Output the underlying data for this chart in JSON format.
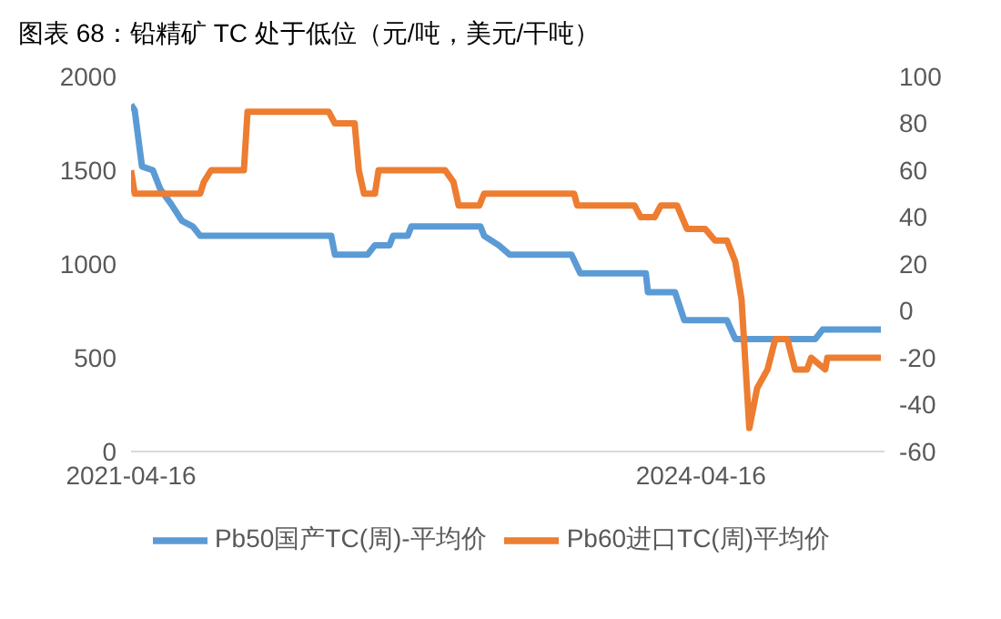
{
  "chart_data": {
    "type": "line",
    "title": "图表 68：铅精矿 TC 处于低位（元/吨，美元/干吨）",
    "xlim": [
      "2021-04-16",
      "2025-04-04"
    ],
    "xticks": [
      "2021-04-16",
      "2024-04-16"
    ],
    "ylim": [
      0,
      2000
    ],
    "yticks": [
      0,
      500,
      1000,
      1500,
      2000
    ],
    "y2lim": [
      -60,
      100
    ],
    "y2ticks": [
      -60,
      -40,
      -20,
      0,
      20,
      40,
      60,
      80,
      100
    ],
    "grid": false,
    "legend": "bottom",
    "marker": "none",
    "line_style": "solid",
    "series": [
      {
        "name": "Pb50国产TC(周)-平均价",
        "color": "#5b9bd5",
        "x": [
          "2021-04-16",
          "2021-04-23",
          "2021-05-07",
          "2021-05-28",
          "2021-06-11",
          "2021-07-02",
          "2021-07-23",
          "2021-08-13",
          "2021-08-27",
          "2022-05-06",
          "2022-05-13",
          "2022-07-15",
          "2022-07-29",
          "2022-08-26",
          "2022-09-02",
          "2022-09-30",
          "2022-10-07",
          "2023-02-17",
          "2023-02-24",
          "2023-03-24",
          "2023-04-14",
          "2023-08-11",
          "2023-08-28",
          "2024-01-01",
          "2024-01-05",
          "2024-02-26",
          "2024-03-15",
          "2024-06-05",
          "2024-06-21",
          "2024-11-22",
          "2024-12-06",
          "2025-03-28"
        ],
        "values": [
          1850,
          1820,
          1520,
          1500,
          1400,
          1320,
          1230,
          1200,
          1150,
          1150,
          1050,
          1050,
          1100,
          1100,
          1150,
          1150,
          1200,
          1200,
          1150,
          1100,
          1050,
          1050,
          950,
          950,
          850,
          850,
          700,
          700,
          600,
          600,
          650,
          650
        ]
      },
      {
        "name": "Pb60进口TC(周)平均价",
        "color": "#ed7d31",
        "axis": "y2",
        "x": [
          "2021-04-16",
          "2021-04-23",
          "2021-08-27",
          "2021-09-03",
          "2021-09-17",
          "2021-11-19",
          "2021-11-26",
          "2022-05-01",
          "2022-05-13",
          "2022-06-20",
          "2022-06-28",
          "2022-07-08",
          "2022-07-29",
          "2022-08-05",
          "2022-12-11",
          "2022-12-27",
          "2023-01-06",
          "2023-02-15",
          "2023-02-24",
          "2023-08-16",
          "2023-08-22",
          "2023-12-10",
          "2023-12-22",
          "2024-01-18",
          "2024-01-30",
          "2024-03-01",
          "2024-03-20",
          "2024-04-24",
          "2024-05-13",
          "2024-06-05",
          "2024-06-21",
          "2024-07-03",
          "2024-07-18",
          "2024-08-02",
          "2024-08-22",
          "2024-09-06",
          "2024-09-29",
          "2024-10-14",
          "2024-11-06",
          "2024-11-14",
          "2024-12-11",
          "2024-12-15",
          "2025-03-28"
        ],
        "values": [
          60,
          50,
          50,
          55,
          60,
          60,
          85,
          85,
          80,
          80,
          60,
          50,
          50,
          60,
          60,
          55,
          45,
          45,
          50,
          50,
          45,
          45,
          40,
          40,
          45,
          45,
          35,
          35,
          30,
          30,
          21,
          5,
          -50,
          -33,
          -25,
          -12,
          -12,
          -25,
          -25,
          -20,
          -25,
          -20,
          -20
        ]
      }
    ]
  }
}
